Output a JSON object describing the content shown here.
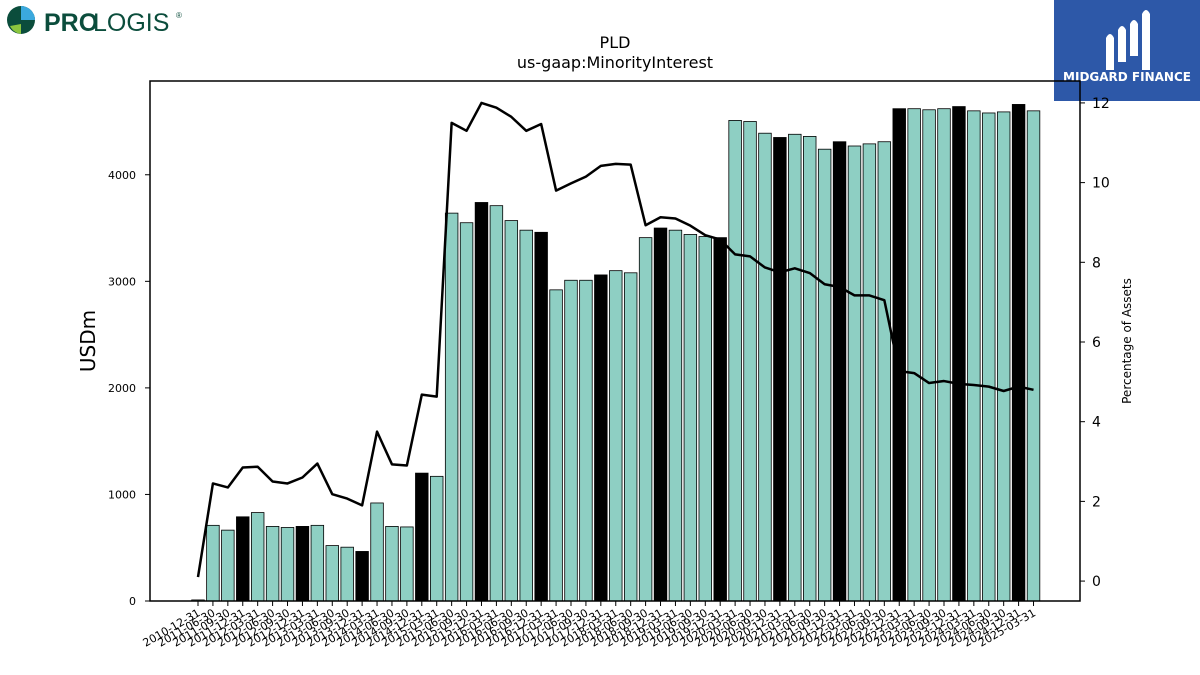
{
  "brand_left": {
    "name_bold": "PRO",
    "name_light": "LOGIS",
    "reg": "®",
    "colors": [
      "#0b4d3c",
      "#3ba9de",
      "#8cc63f"
    ]
  },
  "brand_right": {
    "name": "MIDGARD FINANCE",
    "background": "#2d58a8"
  },
  "chart_data": {
    "type": "bar",
    "title": "PLD",
    "subtitle": "us-gaap:MinorityInterest",
    "ylabel": "USDm",
    "y2label": "Percentage of Assets",
    "ylim": [
      0,
      4880
    ],
    "y2lim": [
      -0.5,
      12.55
    ],
    "yticks": [
      0,
      1000,
      2000,
      3000,
      4000
    ],
    "y2ticks": [
      0,
      2,
      4,
      6,
      8,
      10,
      12
    ],
    "bar_color": "#8ecfc3",
    "highlight_color": "#000000",
    "line_color": "#000000",
    "categories": [
      "2010-12-31",
      "2011-06-30",
      "2011-09-30",
      "2011-12-31",
      "2012-03-31",
      "2012-06-30",
      "2012-09-30",
      "2012-12-31",
      "2013-03-31",
      "2013-06-30",
      "2013-09-30",
      "2013-12-31",
      "2014-03-31",
      "2014-06-30",
      "2014-09-30",
      "2014-12-31",
      "2015-03-31",
      "2015-06-30",
      "2015-09-30",
      "2015-12-31",
      "2016-03-31",
      "2016-06-30",
      "2016-09-30",
      "2016-12-31",
      "2017-03-31",
      "2017-06-30",
      "2017-09-30",
      "2017-12-31",
      "2018-03-31",
      "2018-06-30",
      "2018-09-30",
      "2018-12-31",
      "2019-03-31",
      "2019-06-30",
      "2019-09-30",
      "2019-12-31",
      "2020-03-31",
      "2020-06-30",
      "2020-09-30",
      "2020-12-31",
      "2021-03-31",
      "2021-06-30",
      "2021-09-30",
      "2021-12-31",
      "2022-03-31",
      "2022-06-30",
      "2022-09-30",
      "2022-12-31",
      "2023-03-31",
      "2023-06-30",
      "2023-09-30",
      "2023-12-31",
      "2024-03-31",
      "2024-06-30",
      "2024-09-30",
      "2024-12-31",
      "2025-03-31"
    ],
    "shown_tick_labels": [
      "2010-12-31",
      "2011-06-30",
      "2011-09-30",
      "2011-12-31",
      "2012-03-31",
      "2012-06-30",
      "2012-09-30",
      "2012-12-31",
      "2013-03-31",
      "2013-06-30",
      "2013-09-30",
      "2013-12-31",
      "2014-03-31",
      "2014-06-30",
      "2014-09-30",
      "2014-12-31",
      "2015-03-31",
      "2015-06-30",
      "2015-09-30",
      "2015-12-31",
      "2016-03-31",
      "2016-06-30",
      "2016-09-30",
      "2016-12-31",
      "2017-03-31",
      "2017-06-30",
      "2017-09-30",
      "2017-12-31",
      "2018-03-31",
      "2018-06-30",
      "2018-09-30",
      "2018-12-31",
      "2019-03-31",
      "2019-06-30",
      "2019-09-30",
      "2019-12-31",
      "2020-03-31",
      "2020-06-30",
      "2020-09-30",
      "2020-12-31",
      "2021-03-31",
      "2021-06-30",
      "2021-09-30",
      "2021-12-31",
      "2022-03-31",
      "2022-06-30",
      "2022-09-30",
      "2022-12-31",
      "2023-03-31",
      "2023-06-30",
      "2023-09-30",
      "2023-12-31",
      "2024-03-31",
      "2024-06-30",
      "2024-09-30",
      "2024-12-31",
      "2025-03-31"
    ],
    "highlight": [
      false,
      false,
      false,
      true,
      false,
      false,
      false,
      true,
      false,
      false,
      false,
      true,
      false,
      false,
      false,
      true,
      false,
      false,
      false,
      true,
      false,
      false,
      false,
      true,
      false,
      false,
      false,
      true,
      false,
      false,
      false,
      true,
      false,
      false,
      false,
      true,
      false,
      false,
      false,
      true,
      false,
      false,
      false,
      true,
      false,
      false,
      false,
      true,
      false,
      false,
      false,
      true,
      false,
      false,
      false,
      true,
      false
    ],
    "series": [
      {
        "name": "USDm",
        "values": [
          10,
          710,
          665,
          790,
          830,
          700,
          690,
          700,
          710,
          520,
          505,
          465,
          920,
          700,
          695,
          1200,
          1170,
          3640,
          3550,
          3740,
          3710,
          3570,
          3480,
          3460,
          2920,
          3010,
          3010,
          3060,
          3100,
          3080,
          3410,
          3500,
          3480,
          3440,
          3420,
          3410,
          4510,
          4500,
          4390,
          4350,
          4380,
          4360,
          4240,
          4310,
          4270,
          4290,
          4310,
          4620,
          4620,
          4610,
          4620,
          4640,
          4600,
          4580,
          4590,
          4660,
          4600
        ]
      },
      {
        "name": "Percentage of Assets",
        "values": [
          0.1,
          2.45,
          2.35,
          2.85,
          2.87,
          2.5,
          2.45,
          2.6,
          2.95,
          2.18,
          2.07,
          1.9,
          3.75,
          2.93,
          2.9,
          4.68,
          4.63,
          11.5,
          11.3,
          12.0,
          11.88,
          11.65,
          11.3,
          11.47,
          9.8,
          9.98,
          10.15,
          10.42,
          10.47,
          10.45,
          8.93,
          9.13,
          9.1,
          8.92,
          8.68,
          8.57,
          8.2,
          8.15,
          7.87,
          7.75,
          7.85,
          7.73,
          7.45,
          7.38,
          7.17,
          7.17,
          7.05,
          5.27,
          5.22,
          4.97,
          5.02,
          4.95,
          4.92,
          4.88,
          4.77,
          4.88,
          4.8
        ]
      }
    ]
  }
}
